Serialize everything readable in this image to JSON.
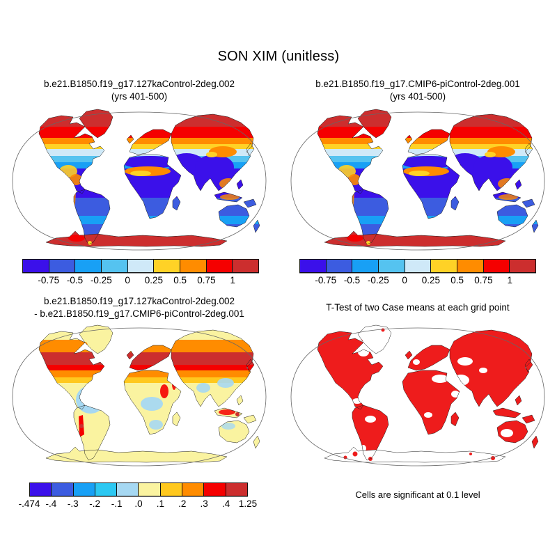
{
  "figure": {
    "title": "SON XIM (unitless)"
  },
  "panels": {
    "case1": {
      "title_line1": "b.e21.B1850.f19_g17.127kaControl-2deg.002",
      "title_line2": "(yrs 401-500)"
    },
    "case2": {
      "title_line1": "b.e21.B1850.f19_g17.CMIP6-piControl-2deg.001",
      "title_line2": "(yrs 401-500)"
    },
    "diff": {
      "title_line1": "b.e21.B1850.f19_g17.127kaControl-2deg.002",
      "title_line2": "- b.e21.B1850.f19_g17.CMIP6-piControl-2deg.001"
    },
    "ttest": {
      "title_line1": "T-Test of two Case means at each grid point",
      "caption": "Cells are significant at 0.1 level"
    }
  },
  "colorbars": {
    "means": {
      "colors": [
        "#3b10ea",
        "#3c5ce0",
        "#18a0f5",
        "#55c3f0",
        "#cfe9f8",
        "#ffd226",
        "#ff8c00",
        "#f50000",
        "#cc2e2e"
      ],
      "labels": [
        "-0.75",
        "-0.5",
        "-0.25",
        "0",
        "0.25",
        "0.5",
        "0.75",
        "1"
      ]
    },
    "diff": {
      "colors": [
        "#3b10ea",
        "#3c5ce0",
        "#18a0f5",
        "#2cc8f2",
        "#a6d8f2",
        "#faf3a0",
        "#ffc81e",
        "#ff8c00",
        "#f50000",
        "#cc2e2e"
      ],
      "labels": [
        "-.474",
        "-.4",
        "-.3",
        "-.2",
        "-.1",
        ".0",
        ".1",
        ".2",
        ".3",
        ".4",
        "1.25"
      ]
    }
  },
  "map_colors": {
    "sig_red": "#ee1c1c",
    "coastline": "#1b1b1b",
    "map_frame": "#666666",
    "ocean": "#ffffff"
  },
  "chart_data": [
    {
      "type": "heatmap",
      "subtype": "global-land-map",
      "projection": "robinson",
      "title": "b.e21.B1850.f19_g17.127kaControl-2deg.002 (yrs 401-500)",
      "variable": "SON XIM (unitless)",
      "levels": [
        -0.75,
        -0.5,
        -0.25,
        0,
        0.25,
        0.5,
        0.75,
        1
      ],
      "palette": [
        "#3b10ea",
        "#3c5ce0",
        "#18a0f5",
        "#55c3f0",
        "#cfe9f8",
        "#ffd226",
        "#ff8c00",
        "#f50000",
        "#cc2e2e"
      ],
      "pattern": "values >= 1 over Arctic land and Antarctica; 0.25-0.75 band across ~50-65N; -0.25 to 0.25 over mid-latitude N. America; <= -0.75 over Sahara, Arabia, India, tropics, Amazon, Australia"
    },
    {
      "type": "heatmap",
      "subtype": "global-land-map",
      "projection": "robinson",
      "title": "b.e21.B1850.f19_g17.CMIP6-piControl-2deg.001 (yrs 401-500)",
      "variable": "SON XIM (unitless)",
      "levels": [
        -0.75,
        -0.5,
        -0.25,
        0,
        0.25,
        0.5,
        0.75,
        1
      ],
      "palette": [
        "#3b10ea",
        "#3c5ce0",
        "#18a0f5",
        "#55c3f0",
        "#cfe9f8",
        "#ffd226",
        "#ff8c00",
        "#f50000",
        "#cc2e2e"
      ],
      "pattern": "nearly identical to first case: red polar land, orange/yellow subpolar band, pale blue mid-latitudes, deep blue tropics, red Antarctica"
    },
    {
      "type": "heatmap",
      "subtype": "global-land-map-difference",
      "projection": "robinson",
      "title": "b.e21.B1850.f19_g17.127kaControl-2deg.002 - b.e21.B1850.f19_g17.CMIP6-piControl-2deg.001",
      "levels": [
        -0.474,
        -0.4,
        -0.3,
        -0.2,
        -0.1,
        0,
        0.1,
        0.2,
        0.3,
        0.4,
        1.25
      ],
      "palette": [
        "#3b10ea",
        "#3c5ce0",
        "#18a0f5",
        "#2cc8f2",
        "#a6d8f2",
        "#faf3a0",
        "#ffc81e",
        "#ff8c00",
        "#f50000",
        "#cc2e2e"
      ],
      "pattern": "strong positive (0.3 to 1.25, red/dark red) across N. American and Eurasian mid/high latitudes with orange fringes; negative (-0.1 to -0.474, blue) over Amazon and patches of Africa, India, China; near zero (pale yellow) elsewhere incl. Antarctica"
    },
    {
      "type": "heatmap",
      "subtype": "significance-mask",
      "projection": "robinson",
      "title": "T-Test of two Case means at each grid point",
      "note": "Cells are significant at 0.1 level",
      "palette": [
        "#ee1c1c"
      ],
      "pattern": "red cells cover most continental land; white (not significant) over Greenland, Arabia, parts of Sahara, central Australia, most of Antarctica"
    }
  ]
}
